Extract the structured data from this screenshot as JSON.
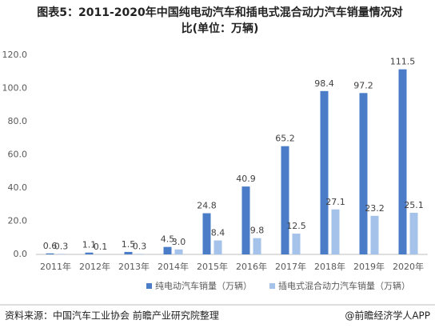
{
  "chart_data": {
    "type": "bar",
    "title": "图表5：2011-2020年中国纯电动汽车和插电式混合动力汽车销量情况对比(单位：万辆)",
    "categories": [
      "2011年",
      "2012年",
      "2013年",
      "2014年",
      "2015年",
      "2016年",
      "2017年",
      "2018年",
      "2019年",
      "2020年"
    ],
    "series": [
      {
        "name": "纯电动汽车销量（万辆）",
        "color": "#4a7cc7",
        "values": [
          0.6,
          1.1,
          1.5,
          4.5,
          24.8,
          40.9,
          65.2,
          98.4,
          97.2,
          111.5
        ]
      },
      {
        "name": "插电式混合动力汽车销量（万辆）",
        "color": "#a4c2ea",
        "values": [
          0.3,
          0.1,
          0.3,
          3.0,
          8.4,
          9.8,
          12.5,
          27.1,
          23.2,
          25.1
        ],
        "value_labels": [
          "0.3",
          "0.1",
          "0.3",
          "3.0",
          "8.4",
          "9.8",
          "12.5",
          "27.1",
          "23.2",
          "25.1"
        ]
      }
    ],
    "ylim": [
      0,
      120
    ],
    "yticks": [
      {
        "value": 0,
        "label": "0.0"
      },
      {
        "value": 20,
        "label": "20.0"
      },
      {
        "value": 40,
        "label": "40.0"
      },
      {
        "value": 60,
        "label": "60.0"
      },
      {
        "value": 80,
        "label": "80.0"
      },
      {
        "value": 100,
        "label": "100.0"
      },
      {
        "value": 120,
        "label": "120.0"
      }
    ],
    "grid": false,
    "legend": "bottom",
    "source": "资料来源：中国汽车工业协会 前瞻产业研究院整理",
    "credit": "@前瞻经济学人APP"
  }
}
